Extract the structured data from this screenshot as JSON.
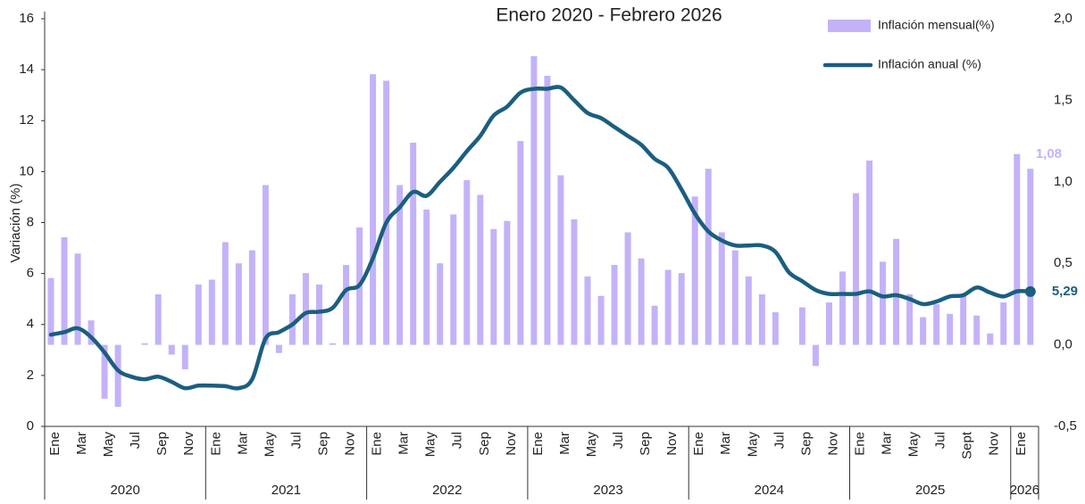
{
  "chart_data": {
    "type": "combo",
    "title": "Enero 2020 - Febrero 2026",
    "y_label": "Variación (%)",
    "categories": [
      "Ene",
      null,
      "Mar",
      null,
      "May",
      null,
      "Jul",
      null,
      "Sep",
      null,
      "Nov",
      null,
      "Ene",
      null,
      "Mar",
      null,
      "May",
      null,
      "Jul",
      null,
      "Sep",
      null,
      "Nov",
      null,
      "Ene",
      null,
      "Mar",
      null,
      "May",
      null,
      "Jul",
      null,
      "Sep",
      null,
      "Nov",
      null,
      "Ene",
      null,
      "Mar",
      null,
      "May",
      null,
      "Jul",
      null,
      "Sep",
      null,
      "Nov",
      null,
      "Ene",
      null,
      "Mar",
      null,
      "May",
      null,
      "Jul",
      null,
      "Sep",
      null,
      "Nov",
      null,
      "Ene",
      null,
      "Mar",
      null,
      "May",
      null,
      "Jul",
      null,
      "Sept",
      null,
      "Nov",
      null,
      "Ene",
      null
    ],
    "years": [
      "2020",
      "2021",
      "2022",
      "2023",
      "2024",
      "2025",
      "2026"
    ],
    "ylim": [
      0,
      16
    ],
    "yticks": [
      0,
      2,
      4,
      6,
      8,
      10,
      12,
      14,
      16
    ],
    "y2lim": [
      -0.5,
      2.0
    ],
    "y2ticks": [
      {
        "value": -0.5,
        "label": "-0,5"
      },
      {
        "value": 0,
        "label": "0,0"
      },
      {
        "value": 0.5,
        "label": "0,5"
      },
      {
        "value": 1.0,
        "label": "1,0"
      },
      {
        "value": 1.5,
        "label": "1,5"
      },
      {
        "value": 2.0,
        "label": "2,0"
      }
    ],
    "legend": "top-right",
    "series": [
      {
        "name": "Inflación mensual(%)",
        "type": "bar",
        "axis": "y2",
        "color": "#c4b2f8",
        "values": [
          0.41,
          0.66,
          0.56,
          0.15,
          -0.33,
          -0.38,
          0.0,
          0.01,
          0.31,
          -0.06,
          -0.15,
          0.37,
          0.4,
          0.63,
          0.5,
          0.58,
          0.98,
          -0.05,
          0.31,
          0.44,
          0.37,
          0.01,
          0.49,
          0.72,
          1.66,
          1.62,
          0.98,
          1.24,
          0.83,
          0.5,
          0.8,
          1.01,
          0.92,
          0.71,
          0.76,
          1.25,
          1.77,
          1.65,
          1.04,
          0.77,
          0.42,
          0.3,
          0.49,
          0.69,
          0.53,
          0.24,
          0.46,
          0.44,
          0.91,
          1.08,
          0.69,
          0.58,
          0.42,
          0.31,
          0.2,
          0.0,
          0.23,
          -0.13,
          0.26,
          0.45,
          0.93,
          1.13,
          0.51,
          0.65,
          0.31,
          0.17,
          0.25,
          0.19,
          0.31,
          0.18,
          0.07,
          0.26,
          1.17,
          1.08
        ],
        "value_labels": [
          null,
          null,
          null,
          null,
          null,
          null,
          null,
          null,
          null,
          null,
          null,
          null,
          null,
          null,
          null,
          null,
          null,
          null,
          null,
          null,
          null,
          null,
          null,
          null,
          null,
          null,
          null,
          null,
          null,
          null,
          null,
          null,
          null,
          null,
          null,
          null,
          null,
          null,
          null,
          null,
          null,
          null,
          null,
          null,
          null,
          null,
          null,
          null,
          null,
          null,
          null,
          null,
          null,
          null,
          null,
          null,
          null,
          null,
          null,
          null,
          null,
          null,
          null,
          null,
          null,
          null,
          null,
          null,
          null,
          null,
          null,
          null,
          null,
          "1,08"
        ]
      },
      {
        "name": "Inflación anual (%)",
        "type": "line",
        "axis": "y",
        "color": "#1b5e80",
        "values": [
          3.6,
          3.7,
          3.85,
          3.5,
          2.9,
          2.2,
          1.95,
          1.85,
          1.95,
          1.75,
          1.5,
          1.6,
          1.6,
          1.58,
          1.5,
          1.85,
          3.45,
          3.7,
          4.0,
          4.45,
          4.5,
          4.65,
          5.35,
          5.55,
          6.6,
          8.0,
          8.6,
          9.2,
          9.05,
          9.6,
          10.15,
          10.8,
          11.4,
          12.2,
          12.55,
          13.1,
          13.25,
          13.25,
          13.3,
          12.8,
          12.3,
          12.1,
          11.75,
          11.4,
          11.05,
          10.5,
          10.15,
          9.3,
          8.35,
          7.65,
          7.3,
          7.1,
          7.1,
          7.1,
          6.85,
          6.05,
          5.7,
          5.35,
          5.2,
          5.2,
          5.2,
          5.3,
          5.1,
          5.15,
          5.0,
          4.8,
          4.9,
          5.1,
          5.15,
          5.45,
          5.25,
          5.1,
          5.3,
          5.29
        ],
        "value_labels": [
          null,
          null,
          null,
          null,
          null,
          null,
          null,
          null,
          null,
          null,
          null,
          null,
          null,
          null,
          null,
          null,
          null,
          null,
          null,
          null,
          null,
          null,
          null,
          null,
          null,
          null,
          null,
          null,
          null,
          null,
          null,
          null,
          null,
          null,
          null,
          null,
          null,
          null,
          null,
          null,
          null,
          null,
          null,
          null,
          null,
          null,
          null,
          null,
          null,
          null,
          null,
          null,
          null,
          null,
          null,
          null,
          null,
          null,
          null,
          null,
          null,
          null,
          null,
          null,
          null,
          null,
          null,
          null,
          null,
          null,
          null,
          null,
          null,
          "5,29"
        ]
      }
    ]
  }
}
